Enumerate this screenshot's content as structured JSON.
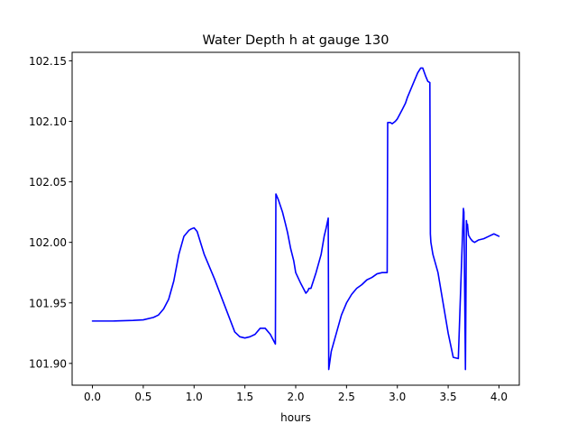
{
  "chart_data": {
    "type": "line",
    "title": "Water Depth h at gauge 130",
    "xlabel": "hours",
    "ylabel": "",
    "xlim": [
      -0.2,
      4.2
    ],
    "ylim": [
      101.882,
      102.157
    ],
    "xticks": [
      0.0,
      0.5,
      1.0,
      1.5,
      2.0,
      2.5,
      3.0,
      3.5,
      4.0
    ],
    "xtick_labels": [
      "0.0",
      "0.5",
      "1.0",
      "1.5",
      "2.0",
      "2.5",
      "3.0",
      "3.5",
      "4.0"
    ],
    "yticks": [
      101.9,
      101.95,
      102.0,
      102.05,
      102.1,
      102.15
    ],
    "ytick_labels": [
      "101.90",
      "101.95",
      "102.00",
      "102.05",
      "102.10",
      "102.15"
    ],
    "grid": false,
    "series": [
      {
        "color": "#0000ff",
        "x": [
          0.0,
          0.2,
          0.4,
          0.5,
          0.6,
          0.65,
          0.7,
          0.75,
          0.8,
          0.85,
          0.9,
          0.95,
          0.97,
          1.0,
          1.03,
          1.1,
          1.2,
          1.3,
          1.35,
          1.4,
          1.45,
          1.5,
          1.55,
          1.6,
          1.65,
          1.7,
          1.75,
          1.8,
          1.805,
          1.83,
          1.87,
          1.9,
          1.92,
          1.95,
          1.98,
          2.0,
          2.05,
          2.1,
          2.12,
          2.13,
          2.15,
          2.2,
          2.25,
          2.28,
          2.3,
          2.32,
          2.325,
          2.33,
          2.35,
          2.4,
          2.45,
          2.5,
          2.55,
          2.6,
          2.65,
          2.7,
          2.75,
          2.8,
          2.85,
          2.9,
          2.905,
          2.93,
          2.95,
          2.98,
          3.0,
          3.05,
          3.08,
          3.1,
          3.15,
          3.2,
          3.23,
          3.25,
          3.28,
          3.3,
          3.32,
          3.325,
          3.33,
          3.35,
          3.4,
          3.45,
          3.5,
          3.55,
          3.6,
          3.65,
          3.655,
          3.67,
          3.68,
          3.685,
          3.69,
          3.695,
          3.7,
          3.72,
          3.74,
          3.76,
          3.8,
          3.85,
          3.9,
          3.95,
          4.0
        ],
        "y": [
          101.935,
          101.935,
          101.9355,
          101.936,
          101.938,
          101.94,
          101.945,
          101.953,
          101.968,
          101.99,
          102.005,
          102.01,
          102.011,
          102.012,
          102.009,
          101.99,
          101.97,
          101.948,
          101.937,
          101.926,
          101.922,
          101.921,
          101.922,
          101.924,
          101.929,
          101.929,
          101.924,
          101.916,
          102.04,
          102.035,
          102.025,
          102.015,
          102.008,
          101.995,
          101.985,
          101.975,
          101.966,
          101.958,
          101.96,
          101.962,
          101.962,
          101.975,
          101.99,
          102.005,
          102.012,
          102.02,
          101.895,
          101.898,
          101.91,
          101.925,
          101.94,
          101.95,
          101.957,
          101.962,
          101.965,
          101.969,
          101.971,
          101.974,
          101.975,
          101.975,
          102.099,
          102.099,
          102.098,
          102.1,
          102.102,
          102.11,
          102.115,
          102.12,
          102.13,
          102.14,
          102.144,
          102.144,
          102.137,
          102.133,
          102.132,
          102.007,
          102.0,
          101.99,
          101.975,
          101.95,
          101.925,
          101.905,
          101.904,
          102.028,
          102.025,
          101.895,
          102.018,
          102.012,
          102.015,
          102.01,
          102.006,
          102.003,
          102.001,
          102.0,
          102.002,
          102.003,
          102.005,
          102.007,
          102.005
        ]
      }
    ]
  }
}
